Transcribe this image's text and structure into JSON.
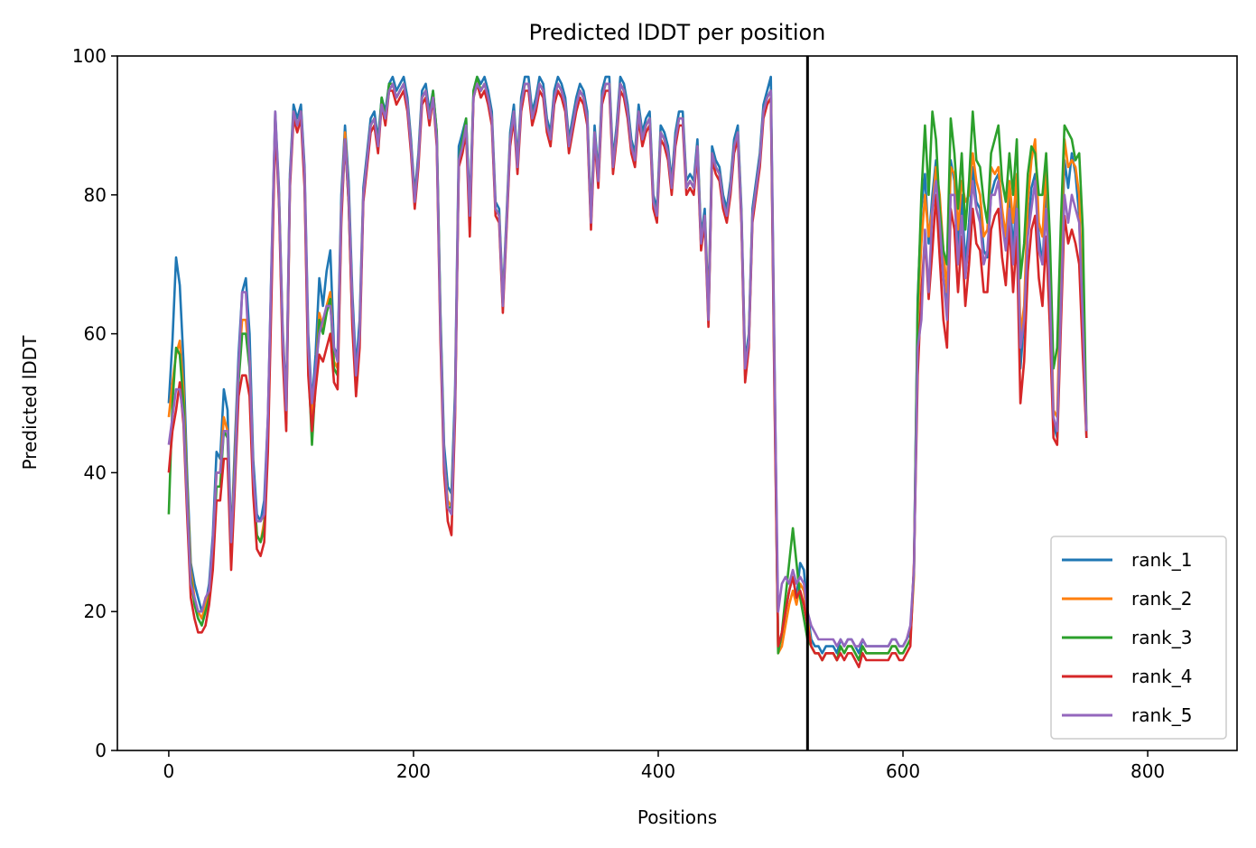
{
  "chart_data": {
    "type": "line",
    "title": "Predicted lDDT per position",
    "xlabel": "Positions",
    "ylabel": "Predicted lDDT",
    "xlim": [
      -42,
      873
    ],
    "ylim": [
      0,
      100
    ],
    "xticks": [
      0,
      200,
      400,
      600,
      800
    ],
    "yticks": [
      0,
      20,
      40,
      60,
      80,
      100
    ],
    "grid": false,
    "legend_position": "bottom-right",
    "chain_break": 522,
    "x_step": 3,
    "series": [
      {
        "name": "rank_1",
        "color": "#1f77b4",
        "y": [
          50,
          59,
          71,
          67,
          56,
          40,
          27,
          24,
          22,
          20,
          21,
          24,
          31,
          43,
          42,
          52,
          49,
          30,
          44,
          57,
          66,
          68,
          60,
          42,
          34,
          33,
          36,
          48,
          71,
          92,
          81,
          61,
          50,
          83,
          93,
          91,
          93,
          84,
          60,
          50,
          57,
          68,
          64,
          69,
          72,
          58,
          57,
          80,
          90,
          82,
          66,
          55,
          62,
          81,
          86,
          91,
          92,
          88,
          94,
          92,
          96,
          97,
          95,
          96,
          97,
          94,
          88,
          80,
          86,
          95,
          96,
          92,
          95,
          89,
          63,
          44,
          38,
          37,
          52,
          87,
          89,
          91,
          78,
          95,
          97,
          96,
          97,
          95,
          92,
          79,
          78,
          65,
          77,
          89,
          93,
          85,
          94,
          97,
          97,
          92,
          94,
          97,
          96,
          91,
          89,
          95,
          97,
          96,
          94,
          88,
          91,
          94,
          96,
          95,
          92,
          77,
          90,
          83,
          95,
          97,
          97,
          85,
          90,
          97,
          96,
          93,
          88,
          86,
          93,
          89,
          91,
          92,
          80,
          78,
          90,
          89,
          87,
          82,
          89,
          92,
          92,
          82,
          83,
          82,
          88,
          74,
          78,
          64,
          87,
          85,
          84,
          80,
          78,
          82,
          88,
          90,
          78,
          56,
          60,
          78,
          82,
          86,
          93,
          95,
          97,
          57,
          15,
          16,
          20,
          23,
          25,
          22,
          27,
          26,
          20,
          16,
          15,
          15,
          14,
          15,
          15,
          15,
          14,
          16,
          15,
          16,
          16,
          15,
          14,
          16,
          15,
          15,
          15,
          15,
          15,
          15,
          15,
          16,
          16,
          15,
          15,
          16,
          17,
          26,
          65,
          78,
          83,
          73,
          80,
          85,
          76,
          68,
          64,
          85,
          82,
          72,
          80,
          70,
          76,
          84,
          79,
          78,
          72,
          71,
          80,
          82,
          83,
          77,
          73,
          81,
          72,
          80,
          55,
          62,
          75,
          81,
          83,
          74,
          70,
          80,
          67,
          47,
          45,
          67,
          85,
          81,
          86,
          83,
          77,
          60,
          45
        ]
      },
      {
        "name": "rank_2",
        "color": "#ff7f0e",
        "y": [
          48,
          53,
          57,
          59,
          52,
          38,
          26,
          22,
          20,
          19,
          21,
          23,
          29,
          40,
          40,
          48,
          46,
          29,
          42,
          55,
          62,
          62,
          56,
          40,
          31,
          30,
          33,
          46,
          69,
          91,
          80,
          60,
          49,
          82,
          92,
          90,
          92,
          83,
          57,
          48,
          54,
          63,
          61,
          64,
          66,
          56,
          55,
          78,
          89,
          80,
          64,
          53,
          60,
          80,
          85,
          90,
          91,
          87,
          93,
          91,
          95,
          96,
          94,
          95,
          96,
          93,
          87,
          79,
          85,
          94,
          95,
          91,
          94,
          88,
          61,
          42,
          36,
          35,
          50,
          85,
          87,
          90,
          76,
          94,
          96,
          95,
          96,
          94,
          91,
          78,
          77,
          64,
          76,
          88,
          92,
          84,
          93,
          96,
          96,
          91,
          93,
          96,
          95,
          90,
          88,
          94,
          96,
          95,
          93,
          87,
          90,
          93,
          95,
          94,
          91,
          76,
          89,
          82,
          94,
          96,
          96,
          84,
          89,
          96,
          95,
          92,
          87,
          85,
          92,
          88,
          90,
          91,
          79,
          77,
          89,
          88,
          86,
          81,
          88,
          91,
          91,
          81,
          82,
          81,
          87,
          73,
          77,
          63,
          86,
          84,
          83,
          79,
          77,
          81,
          87,
          89,
          77,
          55,
          59,
          77,
          81,
          85,
          92,
          94,
          95,
          55,
          14,
          15,
          18,
          21,
          23,
          21,
          24,
          23,
          19,
          15,
          14,
          14,
          13,
          14,
          14,
          14,
          13,
          15,
          14,
          15,
          15,
          14,
          13,
          15,
          14,
          14,
          14,
          14,
          14,
          14,
          14,
          15,
          15,
          14,
          14,
          15,
          16,
          25,
          62,
          73,
          80,
          74,
          78,
          84,
          80,
          72,
          66,
          84,
          83,
          75,
          82,
          79,
          80,
          86,
          82,
          80,
          74,
          75,
          84,
          83,
          84,
          78,
          74,
          82,
          76,
          83,
          60,
          64,
          79,
          85,
          88,
          76,
          74,
          84,
          70,
          49,
          48,
          70,
          88,
          84,
          85,
          84,
          80,
          64,
          46
        ]
      },
      {
        "name": "rank_3",
        "color": "#2ca02c",
        "y": [
          34,
          50,
          58,
          57,
          50,
          37,
          25,
          21,
          19,
          18,
          20,
          22,
          28,
          38,
          38,
          46,
          45,
          28,
          41,
          53,
          60,
          60,
          55,
          39,
          31,
          30,
          32,
          45,
          68,
          91,
          80,
          59,
          47,
          82,
          92,
          90,
          92,
          82,
          56,
          44,
          53,
          62,
          60,
          63,
          65,
          55,
          54,
          77,
          88,
          79,
          62,
          52,
          60,
          80,
          85,
          90,
          91,
          87,
          94,
          91,
          96,
          96,
          94,
          95,
          96,
          93,
          87,
          79,
          85,
          94,
          95,
          91,
          95,
          89,
          62,
          42,
          35,
          35,
          50,
          85,
          88,
          91,
          76,
          95,
          97,
          95,
          96,
          94,
          91,
          78,
          77,
          64,
          76,
          88,
          92,
          84,
          93,
          96,
          96,
          91,
          93,
          96,
          95,
          90,
          88,
          94,
          96,
          95,
          93,
          87,
          90,
          93,
          95,
          94,
          91,
          76,
          89,
          82,
          94,
          96,
          96,
          84,
          89,
          96,
          95,
          92,
          87,
          85,
          92,
          88,
          90,
          91,
          79,
          77,
          89,
          88,
          86,
          81,
          88,
          91,
          91,
          81,
          82,
          81,
          87,
          73,
          77,
          62,
          86,
          84,
          83,
          79,
          77,
          81,
          87,
          89,
          77,
          54,
          59,
          77,
          81,
          85,
          92,
          94,
          95,
          53,
          14,
          17,
          22,
          27,
          32,
          27,
          22,
          19,
          16,
          15,
          14,
          14,
          13,
          14,
          14,
          14,
          13,
          15,
          14,
          15,
          15,
          14,
          13,
          15,
          14,
          14,
          14,
          14,
          14,
          14,
          14,
          15,
          15,
          14,
          14,
          15,
          16,
          26,
          64,
          80,
          90,
          80,
          92,
          88,
          78,
          72,
          70,
          91,
          86,
          78,
          86,
          75,
          82,
          92,
          85,
          84,
          79,
          76,
          86,
          88,
          90,
          82,
          79,
          86,
          80,
          88,
          68,
          73,
          83,
          87,
          86,
          80,
          80,
          86,
          74,
          55,
          58,
          76,
          90,
          89,
          88,
          85,
          86,
          75,
          46
        ]
      },
      {
        "name": "rank_4",
        "color": "#d62728",
        "y": [
          40,
          46,
          49,
          53,
          47,
          34,
          22,
          19,
          17,
          17,
          18,
          21,
          26,
          36,
          36,
          42,
          42,
          26,
          38,
          51,
          54,
          54,
          51,
          37,
          29,
          28,
          30,
          43,
          66,
          90,
          79,
          57,
          46,
          81,
          91,
          89,
          91,
          81,
          54,
          46,
          52,
          57,
          56,
          58,
          60,
          53,
          52,
          76,
          88,
          79,
          61,
          51,
          58,
          79,
          84,
          89,
          90,
          86,
          93,
          90,
          95,
          95,
          93,
          94,
          95,
          92,
          86,
          78,
          84,
          93,
          94,
          90,
          94,
          87,
          59,
          40,
          33,
          31,
          48,
          84,
          86,
          89,
          74,
          94,
          96,
          94,
          95,
          93,
          90,
          77,
          76,
          63,
          75,
          87,
          91,
          83,
          92,
          95,
          95,
          90,
          92,
          95,
          94,
          89,
          87,
          93,
          95,
          94,
          92,
          86,
          89,
          92,
          94,
          93,
          90,
          75,
          88,
          81,
          93,
          95,
          95,
          83,
          88,
          95,
          94,
          91,
          86,
          84,
          91,
          87,
          89,
          90,
          78,
          76,
          88,
          87,
          85,
          80,
          87,
          90,
          90,
          80,
          81,
          80,
          86,
          72,
          76,
          61,
          85,
          83,
          82,
          78,
          76,
          80,
          86,
          88,
          76,
          53,
          58,
          76,
          80,
          84,
          91,
          93,
          94,
          51,
          15,
          17,
          20,
          23,
          25,
          22,
          23,
          21,
          18,
          15,
          14,
          14,
          13,
          14,
          14,
          14,
          13,
          14,
          13,
          14,
          14,
          13,
          12,
          14,
          13,
          13,
          13,
          13,
          13,
          13,
          13,
          14,
          14,
          13,
          13,
          14,
          15,
          27,
          54,
          66,
          74,
          65,
          72,
          80,
          71,
          62,
          58,
          78,
          75,
          66,
          74,
          64,
          70,
          78,
          73,
          72,
          66,
          66,
          75,
          77,
          78,
          71,
          67,
          76,
          66,
          74,
          50,
          56,
          69,
          75,
          77,
          68,
          64,
          74,
          61,
          45,
          44,
          61,
          77,
          73,
          75,
          73,
          70,
          57,
          45
        ]
      },
      {
        "name": "rank_5",
        "color": "#9467bd",
        "y": [
          44,
          48,
          52,
          52,
          48,
          36,
          24,
          22,
          20,
          20,
          22,
          23,
          30,
          40,
          40,
          46,
          46,
          30,
          40,
          55,
          66,
          66,
          56,
          40,
          33,
          33,
          34,
          48,
          70,
          92,
          80,
          60,
          49,
          82,
          92,
          90,
          92,
          83,
          58,
          50,
          55,
          60,
          62,
          64,
          64,
          58,
          56,
          78,
          88,
          80,
          64,
          54,
          60,
          80,
          85,
          90,
          91,
          87,
          93,
          91,
          95,
          96,
          94,
          95,
          96,
          93,
          87,
          79,
          85,
          94,
          95,
          91,
          94,
          88,
          61,
          42,
          35,
          34,
          50,
          85,
          87,
          90,
          77,
          94,
          96,
          95,
          96,
          94,
          91,
          78,
          77,
          64,
          76,
          88,
          92,
          84,
          93,
          96,
          96,
          91,
          93,
          96,
          95,
          90,
          88,
          94,
          96,
          95,
          93,
          87,
          90,
          93,
          95,
          94,
          91,
          76,
          89,
          82,
          94,
          96,
          96,
          84,
          89,
          96,
          95,
          92,
          87,
          85,
          92,
          88,
          90,
          91,
          79,
          77,
          89,
          88,
          86,
          81,
          88,
          91,
          91,
          81,
          82,
          81,
          87,
          73,
          77,
          62,
          86,
          84,
          83,
          79,
          77,
          81,
          87,
          89,
          77,
          55,
          59,
          77,
          81,
          85,
          92,
          94,
          95,
          55,
          20,
          24,
          25,
          24,
          26,
          24,
          25,
          24,
          20,
          18,
          17,
          16,
          16,
          16,
          16,
          16,
          15,
          16,
          15,
          16,
          16,
          15,
          15,
          16,
          15,
          15,
          15,
          15,
          15,
          15,
          15,
          16,
          16,
          15,
          15,
          16,
          18,
          26,
          58,
          62,
          75,
          66,
          78,
          82,
          76,
          68,
          62,
          80,
          80,
          70,
          77,
          68,
          74,
          82,
          78,
          76,
          70,
          72,
          80,
          80,
          82,
          76,
          72,
          78,
          70,
          78,
          58,
          62,
          74,
          78,
          82,
          72,
          70,
          78,
          66,
          48,
          46,
          64,
          80,
          76,
          80,
          78,
          76,
          62,
          46
        ]
      }
    ]
  }
}
